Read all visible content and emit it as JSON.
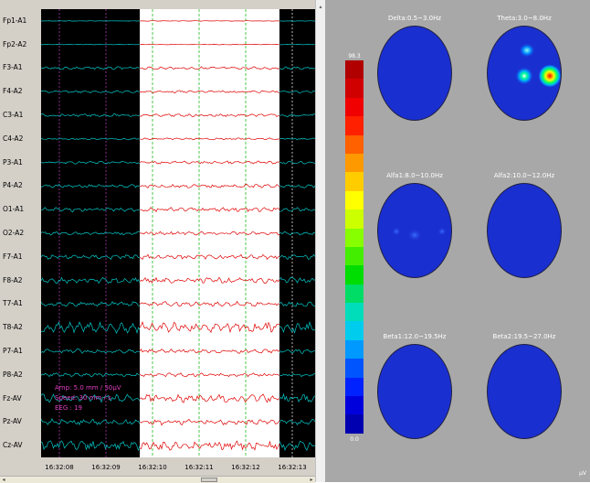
{
  "eeg": {
    "channels": [
      "Fp1-A1",
      "Fp2-A2",
      "F3-A1",
      "F4-A2",
      "C3-A1",
      "C4-A2",
      "P3-A1",
      "P4-A2",
      "O1-A1",
      "O2-A2",
      "F7-A1",
      "F8-A2",
      "T7-A1",
      "T8-A2",
      "P7-A1",
      "P8-A2",
      "Fz-AV",
      "Pz-AV",
      "Cz-AV"
    ],
    "time_ticks": [
      "16:32:08",
      "16:32:09",
      "16:32:10",
      "16:32:11",
      "16:32:12",
      "16:32:13"
    ],
    "amp": "Amp: 5.0 mm / 50µV",
    "speed": "Speed: 30 mm / s",
    "eeg_count": "EEG : 19",
    "colors": {
      "background": "#000000",
      "selection": "#ffffff",
      "trace_dark": "#00c8c8",
      "trace_light": "#e00000",
      "marker_magenta": "#c040c0",
      "marker_green": "#00b000"
    }
  },
  "maps": {
    "panels": [
      {
        "title": "Delta:0.5~3.0Hz"
      },
      {
        "title": "Theta:3.0~8.0Hz"
      },
      {
        "title": "Alfa1:8.0~10.0Hz"
      },
      {
        "title": "Alfa2:10.0~12.0Hz"
      },
      {
        "title": "Beta1:12.0~19.5Hz"
      },
      {
        "title": "Beta2:19.5~27.0Hz"
      }
    ],
    "colorbar_max": "98.3",
    "colorbar_min": "0.0",
    "unit": "µV",
    "colorbar_colors": [
      "#b00000",
      "#d00000",
      "#f00000",
      "#ff2000",
      "#ff6000",
      "#ff9900",
      "#ffcc00",
      "#ffff00",
      "#ccff00",
      "#88ff00",
      "#44ee00",
      "#00dd00",
      "#00dd66",
      "#00ddbb",
      "#00ccee",
      "#0099ff",
      "#0055ff",
      "#0022ff",
      "#0000dd",
      "#0000b0"
    ]
  }
}
